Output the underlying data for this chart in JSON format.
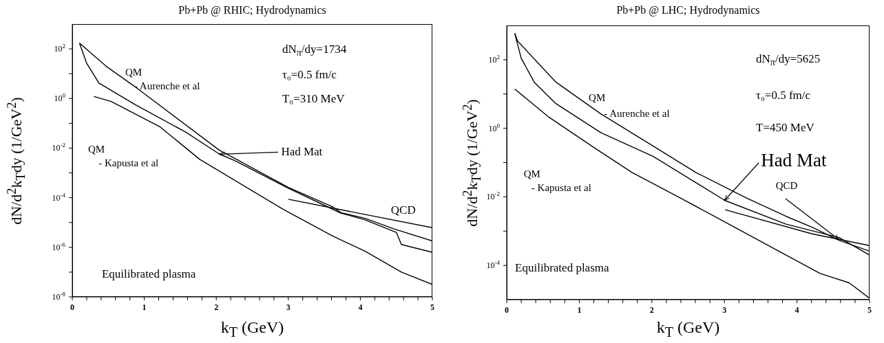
{
  "chart_data": [
    {
      "type": "line",
      "title": "Pb+Pb @ RHIC; Hydrodynamics",
      "xlabel": "k$_{T}$ (GeV)",
      "ylabel": "dN/d$^{2}$k$_{T}$dy (1/GeV$^{2}$)",
      "log": "y",
      "marker": "none",
      "line_style": "solid",
      "xlim": [
        0,
        5
      ],
      "xticks": [
        0,
        {
          "value": 0.2,
          "label": null
        },
        {
          "value": 0.4,
          "label": null
        },
        {
          "value": 0.6,
          "label": null
        },
        {
          "value": 0.8,
          "label": null
        },
        1,
        {
          "value": 1.2,
          "label": null
        },
        {
          "value": 1.4,
          "label": null
        },
        {
          "value": 1.6,
          "label": null
        },
        {
          "value": 1.8,
          "label": null
        },
        2,
        {
          "value": 2.2,
          "label": null
        },
        {
          "value": 2.4,
          "label": null
        },
        {
          "value": 2.6,
          "label": null
        },
        {
          "value": 2.8,
          "label": null
        },
        3,
        {
          "value": 3.2,
          "label": null
        },
        {
          "value": 3.4,
          "label": null
        },
        {
          "value": 3.6,
          "label": null
        },
        {
          "value": 3.8,
          "label": null
        },
        4,
        {
          "value": 4.2,
          "label": null
        },
        {
          "value": 4.4,
          "label": null
        },
        {
          "value": 4.6,
          "label": null
        },
        {
          "value": 4.8,
          "label": null
        },
        5
      ],
      "ylim": [
        1e-08,
        1000
      ],
      "yticks": [
        {
          "value": 1e-08,
          "label": "10$^{-8}$"
        },
        {
          "value": 1e-07,
          "label": null
        },
        {
          "value": 1e-06,
          "label": "10$^{-6}$"
        },
        {
          "value": 1e-05,
          "label": null
        },
        {
          "value": 0.0001,
          "label": "10$^{-4}$"
        },
        {
          "value": 0.001,
          "label": null
        },
        {
          "value": 0.01,
          "label": "10$^{-2}$"
        },
        {
          "value": 0.1,
          "label": null
        },
        {
          "value": 1,
          "label": "10$^{0}$"
        },
        {
          "value": 10,
          "label": null
        },
        {
          "value": 100,
          "label": "10$^{2}$"
        }
      ],
      "series": [
        {
          "color": "#000000",
          "x": [
            0.1,
            0.47,
            0.85,
            2.04,
            2.25,
            3.0,
            3.62,
            3.73,
            4.06,
            4.47,
            5.0
          ],
          "values": [
            170,
            20,
            3.3,
            0.0083,
            0.0039,
            0.00026,
            4.2e-05,
            2.5e-05,
            1.5e-05,
            5.5e-06,
            1.8e-06
          ]
        },
        {
          "color": "#000000",
          "x": [
            0.1,
            0.2,
            0.37,
            0.88,
            1.57,
            2.04,
            2.25,
            3.0,
            3.73,
            4.06,
            4.5,
            4.57,
            5.0
          ],
          "values": [
            170,
            26,
            4.2,
            0.55,
            0.045,
            0.0058,
            0.0032,
            0.00024,
            2.4e-05,
            1.3e-05,
            4e-06,
            1.3e-06,
            6.3e-07
          ]
        },
        {
          "color": "#000000",
          "x": [
            0.3,
            0.54,
            1.22,
            1.77,
            2.93,
            3.62,
            4.06,
            4.57,
            5.0
          ],
          "values": [
            1.2,
            0.76,
            0.071,
            0.0035,
            3.4e-05,
            2.8e-06,
            7.1e-07,
            1e-07,
            3.2e-08
          ]
        },
        {
          "color": "#000000",
          "x": [
            3.0,
            3.62,
            5.0
          ],
          "values": [
            8.7e-05,
            3.8e-05,
            6.2e-06
          ]
        }
      ],
      "annotations": [
        "QM",
        "- Aurenche et al",
        "QM",
        "- Kapusta et al",
        "dN$_{π}$/dy=1734",
        "τ₀=0.5 fm/c",
        "T₀=310 MeV",
        "Equilibrated plasma",
        "QCD",
        {
          "text": "Had Mat",
          "x": 2.04,
          "y": 0.0058
        }
      ]
    },
    {
      "type": "line",
      "title": "Pb+Pb @ LHC; Hydrodynamics",
      "xlabel": "k$_{T}$ (GeV)",
      "ylabel": "dN/d$^{2}$k$_{T}$dy (1/GeV$^{2}$)",
      "log": "y",
      "marker": "none",
      "line_style": "solid",
      "xlim": [
        0,
        5
      ],
      "xticks": [
        0,
        {
          "value": 0.2,
          "label": null
        },
        {
          "value": 0.4,
          "label": null
        },
        {
          "value": 0.6,
          "label": null
        },
        {
          "value": 0.8,
          "label": null
        },
        1,
        {
          "value": 1.2,
          "label": null
        },
        {
          "value": 1.4,
          "label": null
        },
        {
          "value": 1.6,
          "label": null
        },
        {
          "value": 1.8,
          "label": null
        },
        2,
        {
          "value": 2.2,
          "label": null
        },
        {
          "value": 2.4,
          "label": null
        },
        {
          "value": 2.6,
          "label": null
        },
        {
          "value": 2.8,
          "label": null
        },
        3,
        {
          "value": 3.2,
          "label": null
        },
        {
          "value": 3.4,
          "label": null
        },
        {
          "value": 3.6,
          "label": null
        },
        {
          "value": 3.8,
          "label": null
        },
        4,
        {
          "value": 4.2,
          "label": null
        },
        {
          "value": 4.4,
          "label": null
        },
        {
          "value": 4.6,
          "label": null
        },
        {
          "value": 4.8,
          "label": null
        },
        5
      ],
      "ylim": [
        1e-05,
        1000
      ],
      "yticks": [
        {
          "value": 0.0001,
          "label": "10$^{-4}$"
        },
        {
          "value": 0.001,
          "label": null
        },
        {
          "value": 0.01,
          "label": "10$^{-2}$"
        },
        {
          "value": 0.1,
          "label": null
        },
        {
          "value": 1,
          "label": "10$^{0}$"
        },
        {
          "value": 10,
          "label": null
        },
        {
          "value": 100,
          "label": "10$^{2}$"
        }
      ],
      "series": [
        {
          "color": "#000000",
          "x": [
            0.11,
            0.15,
            0.68,
            1.3,
            2.02,
            2.61,
            3.3,
            3.85,
            4.21,
            4.58,
            5.0
          ],
          "values": [
            590,
            350,
            22,
            2.6,
            0.3,
            0.051,
            0.0093,
            0.0027,
            0.0013,
            0.00054,
            0.00026
          ]
        },
        {
          "color": "#000000",
          "x": [
            0.11,
            0.2,
            0.38,
            0.68,
            1.3,
            2.02,
            3.01,
            3.85,
            4.58,
            5.0
          ],
          "values": [
            590,
            110,
            22,
            5.2,
            0.74,
            0.15,
            0.0078,
            0.0016,
            0.00065,
            0.0002
          ]
        },
        {
          "color": "#000000",
          "x": [
            0.11,
            0.57,
            1.22,
            1.73,
            2.39,
            2.94,
            3.67,
            4.32,
            4.72,
            5.0
          ],
          "values": [
            14,
            2.2,
            0.26,
            0.051,
            0.0093,
            0.0022,
            0.00032,
            5.8e-05,
            3.1e-05,
            1.1e-05
          ]
        },
        {
          "color": "#000000",
          "x": [
            3.01,
            4.21,
            5.0
          ],
          "values": [
            0.0042,
            0.00083,
            0.00038
          ]
        }
      ],
      "annotations": [
        "QM",
        "- Aurenche et al",
        "QM",
        "- Kapusta et al",
        "dN$_{π}$/dy=5625",
        "τ₀=0.5 fm/c",
        "T=450 MeV",
        "Equilibrated plasma",
        {
          "text": "Had Mat",
          "x": 3.0,
          "y": 0.0078
        },
        {
          "text": "QCD",
          "x": 4.58,
          "y": 0.00056
        }
      ]
    }
  ]
}
